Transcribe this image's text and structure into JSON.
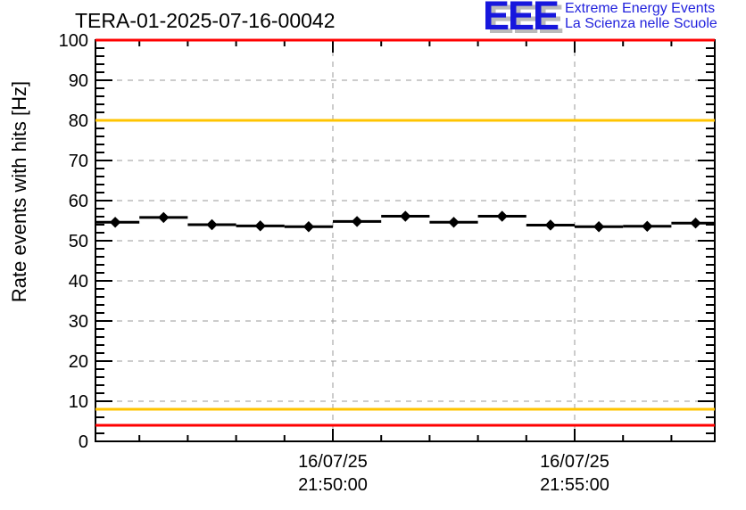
{
  "header": {
    "title": "TERA-01-2025-07-16-00042",
    "logo": {
      "acronym": "EEE",
      "line1": "Extreme Energy Events",
      "line2": "La Scienza nelle Scuole",
      "text_color": "#2222dd",
      "acronym_color": "#1717dd",
      "shadow_color": "#bbbbbb"
    }
  },
  "chart_data": {
    "type": "scatter",
    "title": "TERA-01-2025-07-16-00042",
    "xlabel": "",
    "ylabel": "Rate events with hits [Hz]",
    "ylim": [
      0,
      100
    ],
    "y_major_step": 10,
    "y_minor_step": 2,
    "grid": true,
    "grid_color": "#999999",
    "axis_color": "#000000",
    "x_axis": {
      "kind": "time",
      "minor_tick_every_min": 1,
      "range_minutes_from_2150": [
        -4.91,
        7.87
      ],
      "major_ticks": [
        {
          "offset_min": 0,
          "label_date": "16/07/25",
          "label_time": "21:50:00"
        },
        {
          "offset_min": 5,
          "label_date": "16/07/25",
          "label_time": "21:55:00"
        }
      ]
    },
    "series": [
      {
        "name": "rate-events-with-hits",
        "marker": "filled-diamond",
        "color": "#000000",
        "bin_width_min": 1,
        "points": [
          {
            "time": "21:45:30",
            "offset_min": -4.5,
            "hz": 54.6
          },
          {
            "time": "21:46:30",
            "offset_min": -3.5,
            "hz": 55.8
          },
          {
            "time": "21:47:30",
            "offset_min": -2.5,
            "hz": 54.0
          },
          {
            "time": "21:48:30",
            "offset_min": -1.5,
            "hz": 53.7
          },
          {
            "time": "21:49:30",
            "offset_min": -0.5,
            "hz": 53.5
          },
          {
            "time": "21:50:30",
            "offset_min": 0.5,
            "hz": 54.8
          },
          {
            "time": "21:51:30",
            "offset_min": 1.5,
            "hz": 56.1
          },
          {
            "time": "21:52:30",
            "offset_min": 2.5,
            "hz": 54.6
          },
          {
            "time": "21:53:30",
            "offset_min": 3.5,
            "hz": 56.1
          },
          {
            "time": "21:54:30",
            "offset_min": 4.5,
            "hz": 53.9
          },
          {
            "time": "21:55:30",
            "offset_min": 5.5,
            "hz": 53.5
          },
          {
            "time": "21:56:30",
            "offset_min": 6.5,
            "hz": 53.6
          },
          {
            "time": "21:57:30",
            "offset_min": 7.5,
            "hz": 54.4
          }
        ]
      }
    ],
    "thresholds": [
      {
        "name": "alarm-red",
        "color": "#ff0000",
        "values": [
          100,
          4
        ]
      },
      {
        "name": "warning-yellow",
        "color": "#ffc400",
        "values": [
          80,
          8
        ]
      }
    ]
  }
}
